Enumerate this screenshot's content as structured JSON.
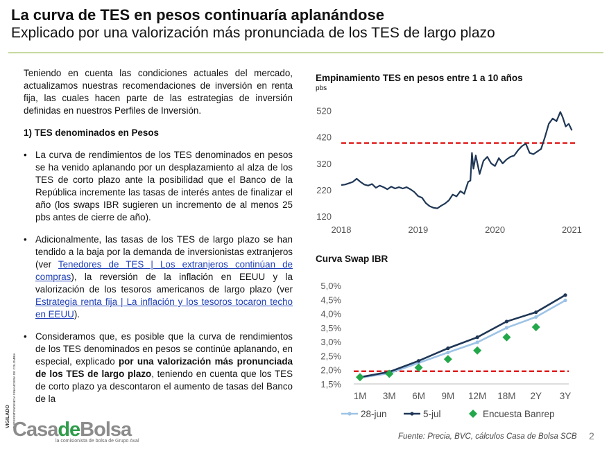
{
  "header": {
    "title": "La curva de TES en pesos continuaría aplanándose",
    "subtitle": "Explicado por una valorización más pronunciada de los TES de largo plazo"
  },
  "text": {
    "intro": "Teniendo en cuenta las condiciones actuales del mercado, actualizamos nuestras recomendaciones de inversión en renta fija, las cuales hacen parte de las estrategias de inversión definidas en nuestros Perfiles de Inversión.",
    "section": "1)  TES denominados en Pesos",
    "bullet_char": "•",
    "b1": "La curva de rendimientos de los TES denominados en pesos se ha venido aplanando por un desplazamiento al alza de los TES de corto plazo ante la posibilidad que el Banco de la República incremente las tasas de interés antes de finalizar el año (los swaps IBR sugieren un incremento de al menos 25 pbs antes de cierre de año).",
    "b2_a": "Adicionalmente, las tasas de los TES de largo plazo se han tendido a la baja por la demanda de inversionistas extranjeros (ver ",
    "b2_link1": "Tenedores de TES   | Los extranjeros continúan de compras",
    "b2_b": "), la reversión de la inflación en EEUU  y la valorización de los tesoros americanos de largo plazo (ver ",
    "b2_link2": "Estrategia renta fija | La inflación y los tesoros tocaron techo en EEUU",
    "b2_c": ").",
    "b3_a": "Consideramos que, es posible que la curva de rendimientos de los TES denominados en pesos se continúe aplanando, en especial, explicado ",
    "b3_bold": "por una valorización más pronunciada de los TES de largo plazo",
    "b3_c": ", teniendo en cuenta que los TES de corto plazo ya descontaron el aumento de tasas del Banco de la"
  },
  "vigilado": {
    "word": "VIGILADO",
    "entity": "SUPERINTENDENCIA FINANCIERA DE COLOMBIA"
  },
  "colors": {
    "navy": "#1f3756",
    "light_blue": "#9dc3e6",
    "red_dash": "#e01b1b",
    "green": "#22a84a"
  },
  "chart_data": [
    {
      "type": "line",
      "title": "Empinamiento TES en pesos entre 1 a 10 años",
      "ylabel": "pbs",
      "ylim": [
        120,
        540
      ],
      "yticks": [
        "520",
        "420",
        "320",
        "220",
        "120"
      ],
      "ytick_values": [
        520,
        420,
        320,
        220,
        120
      ],
      "xticks": [
        "2018",
        "2019",
        "2020",
        "2021"
      ],
      "xlim": [
        2018,
        2021.05
      ],
      "reference_line": 397,
      "series": [
        {
          "x": [
            2018.0,
            2018.05,
            2018.1,
            2018.15,
            2018.2,
            2018.25,
            2018.3,
            2018.35,
            2018.4,
            2018.45,
            2018.5,
            2018.55,
            2018.6,
            2018.65,
            2018.7,
            2018.75,
            2018.8,
            2018.85,
            2018.9,
            2018.95,
            2019.0,
            2019.05,
            2019.1,
            2019.15,
            2019.2,
            2019.25,
            2019.3,
            2019.35,
            2019.4,
            2019.45,
            2019.5,
            2019.55,
            2019.6,
            2019.65,
            2019.68,
            2019.7,
            2019.72,
            2019.75,
            2019.8,
            2019.85,
            2019.9,
            2019.95,
            2020.0,
            2020.05,
            2020.1,
            2020.15,
            2020.2,
            2020.25,
            2020.3,
            2020.35,
            2020.4,
            2020.45,
            2020.5,
            2020.55,
            2020.6,
            2020.65,
            2020.7,
            2020.75,
            2020.8,
            2020.85,
            2020.88,
            2020.92,
            2020.96,
            2021.0
          ],
          "y": [
            238,
            240,
            245,
            250,
            262,
            250,
            240,
            236,
            242,
            228,
            236,
            230,
            222,
            232,
            225,
            230,
            225,
            230,
            222,
            212,
            196,
            190,
            170,
            158,
            152,
            150,
            160,
            168,
            180,
            202,
            195,
            215,
            205,
            250,
            255,
            360,
            300,
            350,
            280,
            330,
            345,
            320,
            310,
            340,
            320,
            335,
            345,
            350,
            370,
            385,
            395,
            360,
            355,
            365,
            375,
            420,
            470,
            490,
            480,
            515,
            495,
            460,
            470,
            445
          ]
        }
      ]
    },
    {
      "type": "line",
      "title": "Curva Swap IBR",
      "ylim": [
        1.5,
        5.0
      ],
      "yticks": [
        "5,0%",
        "4,5%",
        "4,0%",
        "3,5%",
        "3,0%",
        "2,5%",
        "2,0%",
        "1,5%"
      ],
      "ytick_values": [
        5.0,
        4.5,
        4.0,
        3.5,
        3.0,
        2.5,
        2.0,
        1.5
      ],
      "categories": [
        "1M",
        "3M",
        "6M",
        "9M",
        "12M",
        "18M",
        "2Y",
        "3Y"
      ],
      "reference_line": 1.95,
      "series": [
        {
          "name": "28-jun",
          "style": "line",
          "values": [
            1.72,
            1.88,
            2.25,
            2.62,
            2.98,
            3.5,
            3.88,
            4.47
          ]
        },
        {
          "name": "5-jul",
          "style": "line",
          "values": [
            1.74,
            1.93,
            2.32,
            2.77,
            3.16,
            3.72,
            4.05,
            4.66
          ]
        },
        {
          "name": "Encuesta Banrep",
          "style": "marker",
          "values": [
            1.74,
            1.86,
            2.08,
            2.38,
            2.69,
            3.16,
            3.52,
            null
          ]
        }
      ]
    }
  ],
  "logo": {
    "casa": "Casa",
    "de": "de",
    "bolsa": "Bolsa",
    "tagline": "la comisionista de bolsa de Grupo Aval"
  },
  "footer": {
    "source": "Fuente: Precia, BVC, cálculos Casa de Bolsa SCB",
    "page": "2"
  }
}
